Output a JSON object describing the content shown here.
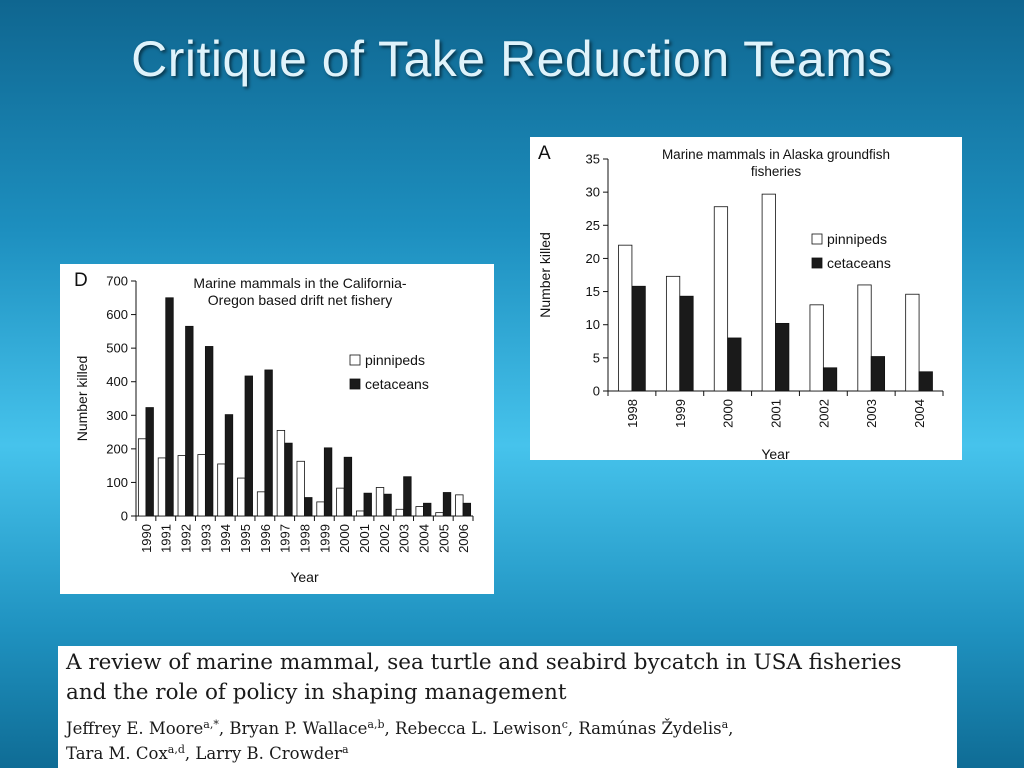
{
  "slide": {
    "title": "Critique of Take Reduction Teams"
  },
  "chart_data": [
    {
      "type": "bar",
      "panel_letter": "D",
      "title_lines": [
        "Marine mammals in the California-",
        "Oregon based drift net fishery"
      ],
      "xlabel": "Year",
      "ylabel": "Number killed",
      "ylim": [
        0,
        700
      ],
      "yticks": [
        0,
        100,
        200,
        300,
        400,
        500,
        600,
        700
      ],
      "categories": [
        "1990",
        "1991",
        "1992",
        "1993",
        "1994",
        "1995",
        "1996",
        "1997",
        "1998",
        "1999",
        "2000",
        "2001",
        "2002",
        "2003",
        "2004",
        "2005",
        "2006"
      ],
      "series": [
        {
          "name": "pinnipeds",
          "color": "#ffffff",
          "values": [
            230,
            173,
            180,
            183,
            155,
            113,
            72,
            255,
            163,
            42,
            83,
            15,
            85,
            20,
            28,
            10,
            63
          ]
        },
        {
          "name": "cetaceans",
          "color": "#1a1a1a",
          "values": [
            323,
            650,
            565,
            505,
            302,
            417,
            435,
            217,
            55,
            203,
            175,
            68,
            65,
            117,
            38,
            70,
            38
          ]
        }
      ],
      "legend_position": "right"
    },
    {
      "type": "bar",
      "panel_letter": "A",
      "title_lines": [
        "Marine mammals in Alaska groundfish",
        "fisheries"
      ],
      "xlabel": "Year",
      "ylabel": "Number killed",
      "ylim": [
        0,
        35
      ],
      "yticks": [
        0,
        5,
        10,
        15,
        20,
        25,
        30,
        35
      ],
      "categories": [
        "1998",
        "1999",
        "2000",
        "2001",
        "2002",
        "2003",
        "2004"
      ],
      "series": [
        {
          "name": "pinnipeds",
          "color": "#ffffff",
          "values": [
            22,
            17.3,
            27.8,
            29.7,
            13,
            16,
            14.6
          ]
        },
        {
          "name": "cetaceans",
          "color": "#1a1a1a",
          "values": [
            15.8,
            14.3,
            8,
            10.2,
            3.5,
            5.2,
            2.9
          ]
        }
      ],
      "legend_position": "top-right"
    }
  ],
  "paper": {
    "title_line1": "A review of marine mammal, sea turtle and seabird bycatch in USA fisheries",
    "title_line2": "and the role of policy in shaping management",
    "authors": [
      {
        "name": "Jeffrey E. Moore",
        "sup": "a,*",
        "sep": ", "
      },
      {
        "name": "Bryan P. Wallace",
        "sup": "a,b",
        "sep": ", "
      },
      {
        "name": "Rebecca L. Lewison",
        "sup": "c",
        "sep": ", "
      },
      {
        "name": "Ramúnas Žydelis",
        "sup": "a",
        "sep": ","
      },
      {
        "name": "Tara M. Cox",
        "sup": "a,d",
        "sep": ", "
      },
      {
        "name": "Larry B. Crowder",
        "sup": "a",
        "sep": ""
      }
    ]
  }
}
